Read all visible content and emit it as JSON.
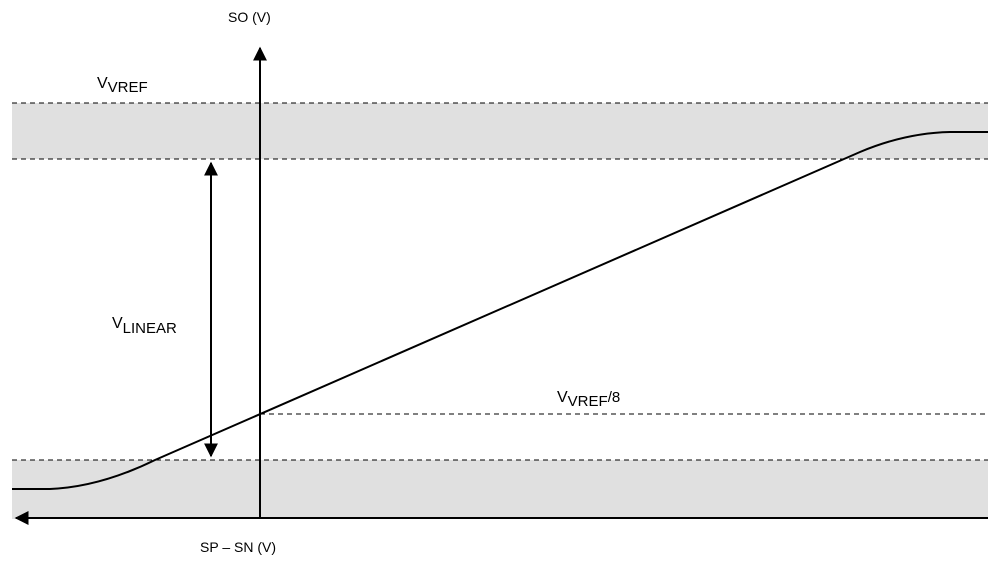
{
  "axes": {
    "y_label": "SO (V)",
    "x_label": "SP – SN (V)"
  },
  "labels": {
    "vref": {
      "main": "V",
      "sub": "VREF"
    },
    "vlinear": {
      "main": "V",
      "sub": "LINEAR"
    },
    "vref8": {
      "main": "V",
      "sub": "VREF",
      "suffix": "/8"
    }
  },
  "colors": {
    "band": "#e0e0e0",
    "line": "#000000",
    "background": "#ffffff"
  }
}
